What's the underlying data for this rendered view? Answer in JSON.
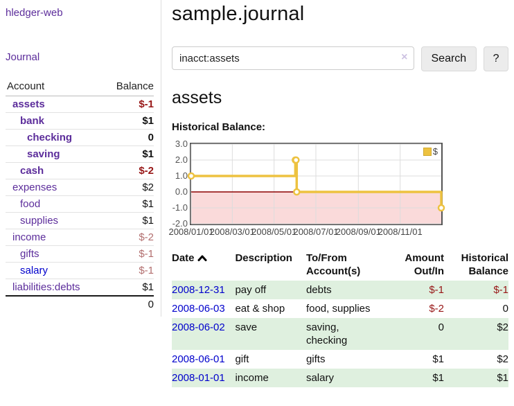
{
  "sidebar": {
    "app_title": "hledger-web",
    "journal_link": "Journal",
    "accounts_table": {
      "account_header": "Account",
      "balance_header": "Balance",
      "rows": [
        {
          "account": "assets",
          "balance": "$-1"
        },
        {
          "account": "bank",
          "balance": "$1"
        },
        {
          "account": "checking",
          "balance": "0"
        },
        {
          "account": "saving",
          "balance": "$1"
        },
        {
          "account": "cash",
          "balance": "$-2"
        },
        {
          "account": "expenses",
          "balance": "$2"
        },
        {
          "account": "food",
          "balance": "$1"
        },
        {
          "account": "supplies",
          "balance": "$1"
        },
        {
          "account": "income",
          "balance": "$-2"
        },
        {
          "account": "gifts",
          "balance": "$-1"
        },
        {
          "account": "salary",
          "balance": "$-1"
        },
        {
          "account": "liabilities:debts",
          "balance": "$1"
        }
      ],
      "total": "0"
    }
  },
  "main": {
    "title": "sample.journal",
    "search": {
      "value": "inacct:assets",
      "clear_icon": "×",
      "search_button": "Search",
      "help_button": "?"
    },
    "account_heading": "assets",
    "section_label": "Historical Balance:"
  },
  "chart_data": {
    "type": "line",
    "title": "Historical Balance",
    "style": "step-with-markers",
    "series": [
      {
        "name": "$",
        "color": "#EDC240",
        "points": [
          {
            "date": "2008-01-01",
            "days": 0,
            "value": 1
          },
          {
            "date": "2008-06-01",
            "days": 152,
            "value": 2
          },
          {
            "date": "2008-06-02",
            "days": 153,
            "value": 2
          },
          {
            "date": "2008-06-03",
            "days": 154,
            "value": 0
          },
          {
            "date": "2008-12-31",
            "days": 365,
            "value": -1
          }
        ]
      }
    ],
    "ylim": [
      -2,
      3
    ],
    "xlim_days": [
      0,
      365
    ],
    "y_ticks": [
      "3.0",
      "2.0",
      "1.0",
      "0.0",
      "-1.0",
      "-2.0"
    ],
    "x_ticks": [
      {
        "days": 0,
        "label": "2008/01/01"
      },
      {
        "days": 60,
        "label": "2008/03/01"
      },
      {
        "days": 121,
        "label": "2008/05/01"
      },
      {
        "days": 182,
        "label": "2008/07/01"
      },
      {
        "days": 244,
        "label": "2008/09/01"
      },
      {
        "days": 305,
        "label": "2008/11/01"
      }
    ],
    "legend": {
      "position": "top-right",
      "entries": [
        {
          "label": "$",
          "color": "#EDC240"
        }
      ]
    },
    "grid": true,
    "negative_region_fill": "#fadada",
    "zero_line_color": "#8b0000",
    "grid_color": "#dcdcdc"
  },
  "register": {
    "headers": {
      "date": "Date",
      "description": "Description",
      "accounts": "To/From Account(s)",
      "amount": "Amount Out/In",
      "balance": "Historical Balance"
    },
    "sort_icon": "chevron-up",
    "rows": [
      {
        "date": "2008-12-31",
        "description": "pay off",
        "accounts": "debts",
        "amount": "$-1",
        "balance": "$-1"
      },
      {
        "date": "2008-06-03",
        "description": "eat & shop",
        "accounts": "food, supplies",
        "amount": "$-2",
        "balance": "0"
      },
      {
        "date": "2008-06-02",
        "description": "save",
        "accounts": "saving, checking",
        "amount": "0",
        "balance": "$2"
      },
      {
        "date": "2008-06-01",
        "description": "gift",
        "accounts": "gifts",
        "amount": "$1",
        "balance": "$2"
      },
      {
        "date": "2008-01-01",
        "description": "income",
        "accounts": "salary",
        "amount": "$1",
        "balance": "$1"
      }
    ]
  },
  "colors": {
    "accent_purple": "#5c2d9b",
    "link_blue": "#0000cc",
    "negative_strong": "#971616",
    "negative_muted": "#b26e6e",
    "row_stripe_green": "#dff0df",
    "chart_line": "#EDC240"
  }
}
